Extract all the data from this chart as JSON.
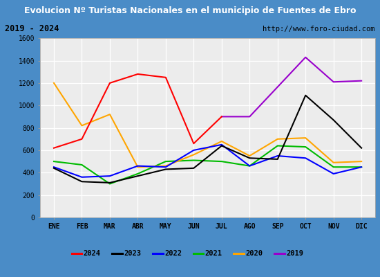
{
  "title": "Evolucion Nº Turistas Nacionales en el municipio de Fuentes de Ebro",
  "subtitle_left": "2019 - 2024",
  "subtitle_right": "http://www.foro-ciudad.com",
  "months": [
    "ENE",
    "FEB",
    "MAR",
    "ABR",
    "MAY",
    "JUN",
    "JUL",
    "AGO",
    "SEP",
    "OCT",
    "NOV",
    "DIC"
  ],
  "series": {
    "2024": [
      620,
      700,
      1200,
      1280,
      1250,
      660,
      900,
      null,
      null,
      null,
      null,
      null
    ],
    "2023": [
      440,
      320,
      310,
      370,
      430,
      440,
      640,
      530,
      520,
      1090,
      870,
      620
    ],
    "2022": [
      450,
      360,
      370,
      460,
      450,
      600,
      650,
      460,
      550,
      530,
      390,
      450
    ],
    "2021": [
      500,
      470,
      300,
      390,
      500,
      510,
      500,
      460,
      640,
      630,
      450,
      450
    ],
    "2020": [
      1200,
      820,
      920,
      450,
      460,
      560,
      680,
      550,
      700,
      710,
      490,
      500
    ],
    "2019": [
      null,
      null,
      null,
      null,
      null,
      null,
      900,
      900,
      null,
      1430,
      1210,
      1220
    ]
  },
  "colors": {
    "2024": "#ff0000",
    "2023": "#000000",
    "2022": "#0000ff",
    "2021": "#00bb00",
    "2020": "#ffa500",
    "2019": "#9900cc"
  },
  "ylim": [
    0,
    1600
  ],
  "yticks": [
    0,
    200,
    400,
    600,
    800,
    1000,
    1200,
    1400,
    1600
  ],
  "title_bg_color": "#4a8cc7",
  "title_text_color": "#ffffff",
  "subtitle_bg_color": "#e8e8e8",
  "plot_bg_color": "#ececec",
  "grid_color": "#ffffff",
  "outer_bg_color": "#4a8cc7",
  "linewidth": 1.5
}
